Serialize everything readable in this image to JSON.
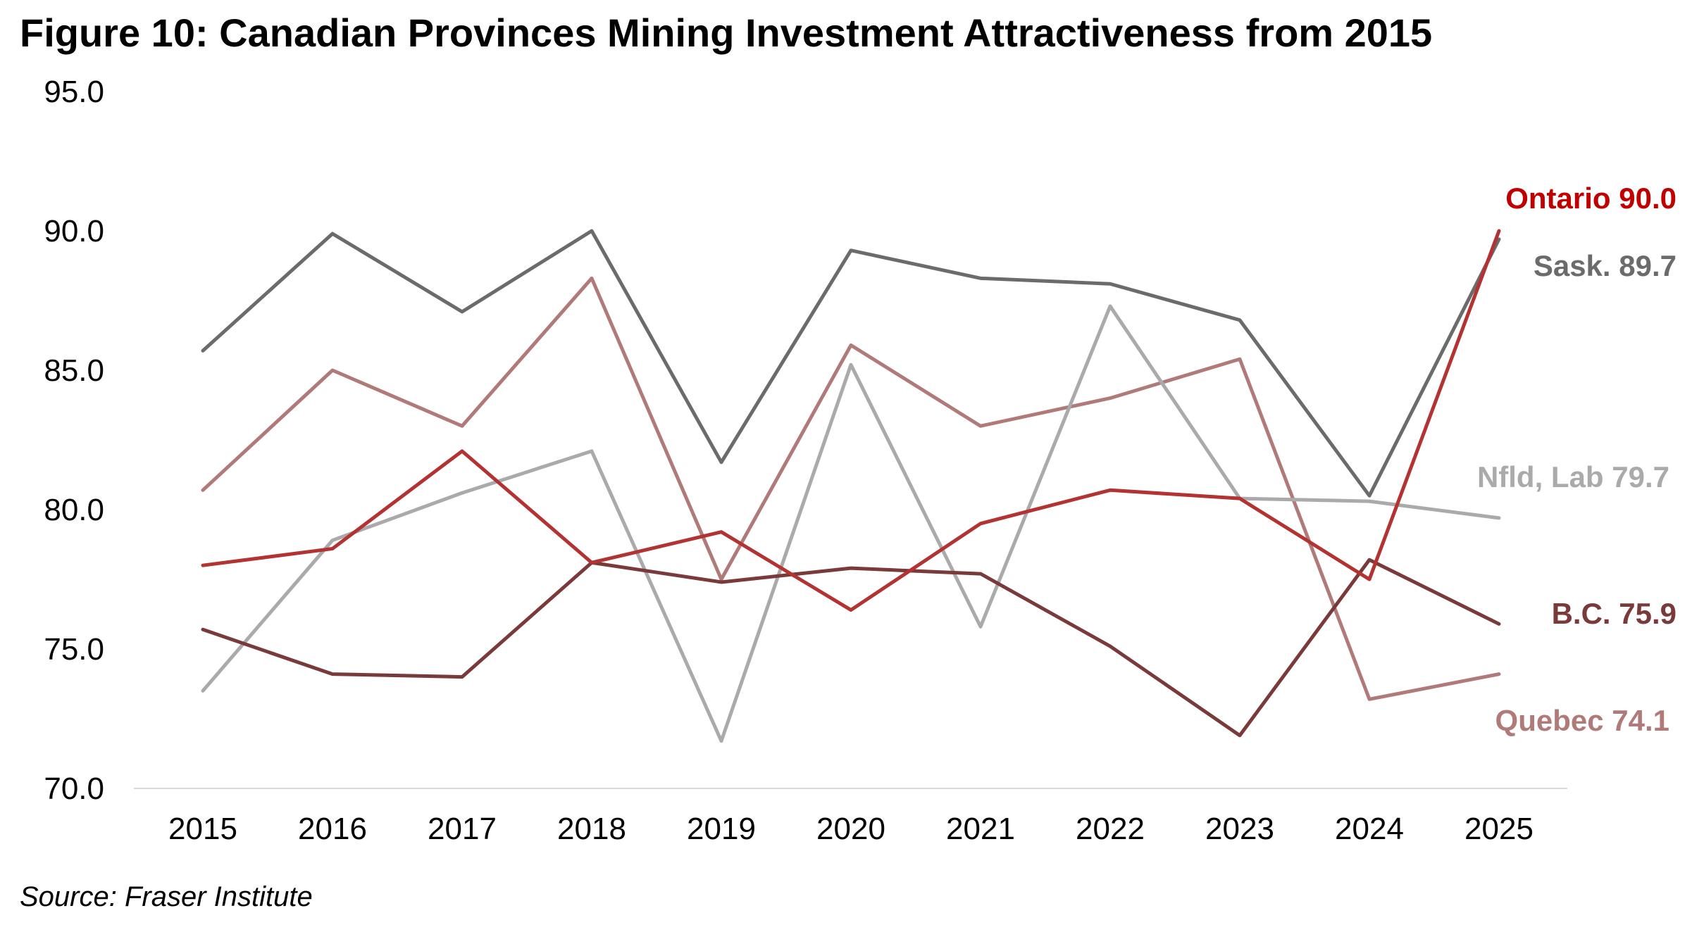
{
  "title": "Figure 10: Canadian Provinces Mining Investment Attractiveness from 2015",
  "source": "Source: Fraser Institute",
  "chart_data": {
    "type": "line",
    "title": "Figure 10: Canadian Provinces Mining Investment Attractiveness from 2015",
    "xlabel": "",
    "ylabel": "",
    "ylim": [
      70,
      95
    ],
    "yticks": [
      "70.0",
      "75.0",
      "80.0",
      "85.0",
      "90.0",
      "95.0"
    ],
    "categories": [
      "2015",
      "2016",
      "2017",
      "2018",
      "2019",
      "2020",
      "2021",
      "2022",
      "2023",
      "2024",
      "2025"
    ],
    "grid": false,
    "legend": "end-of-line labels",
    "series": [
      {
        "key": "sask",
        "name": "Sask.",
        "label": "Sask. 89.7",
        "color": "#6b6b6b",
        "values": [
          85.7,
          89.9,
          87.1,
          90.0,
          81.7,
          89.3,
          88.3,
          88.1,
          86.8,
          80.5,
          89.7
        ]
      },
      {
        "key": "quebec",
        "name": "Quebec",
        "label": "Quebec 74.1",
        "color": "#b07a78",
        "values": [
          80.7,
          85.0,
          83.0,
          88.3,
          77.5,
          85.9,
          83.0,
          84.0,
          85.4,
          73.2,
          74.1
        ]
      },
      {
        "key": "nfld",
        "name": "Nfld, Lab",
        "label": "Nfld, Lab 79.7",
        "color": "#aaaaaa",
        "values": [
          73.5,
          78.9,
          80.6,
          82.1,
          71.7,
          85.2,
          75.8,
          87.3,
          80.4,
          80.3,
          79.7
        ]
      },
      {
        "key": "bc",
        "name": "B.C.",
        "label": "B.C.  75.9",
        "color": "#7a3a3a",
        "values": [
          75.7,
          74.1,
          74.0,
          78.1,
          77.4,
          77.9,
          77.7,
          75.1,
          71.9,
          78.2,
          75.9
        ]
      },
      {
        "key": "ontario",
        "name": "Ontario",
        "label": "Ontario 90.0",
        "color": "#b33232",
        "label_color": "#c00000",
        "values": [
          78.0,
          78.6,
          82.1,
          78.1,
          79.2,
          76.4,
          79.5,
          80.7,
          80.4,
          77.5,
          90.0
        ]
      }
    ]
  }
}
